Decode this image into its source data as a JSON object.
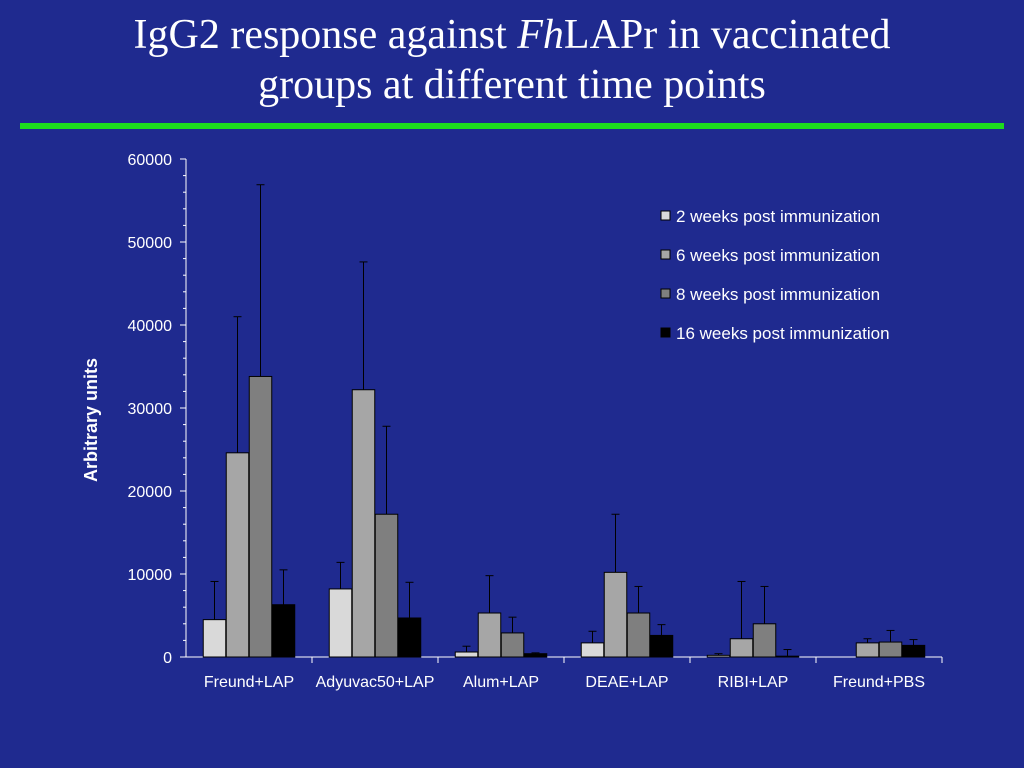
{
  "slide": {
    "title_part1": "IgG2 response against ",
    "title_italic": "Fh",
    "title_part2": "LAPr in vaccinated",
    "title_line2": "groups at different time points",
    "accent_color": "#1ddc1d",
    "background_color": "#1f2a8f"
  },
  "chart_data": {
    "type": "bar",
    "title": "",
    "xlabel": "",
    "ylabel": "Arbitrary units",
    "ylim": [
      0,
      60000
    ],
    "yticks": [
      0,
      10000,
      20000,
      30000,
      40000,
      50000,
      60000
    ],
    "categories": [
      "Freund+LAP",
      "Adyuvac50+LAP",
      "Alum+LAP",
      "DEAE+LAP",
      "RIBI+LAP",
      "Freund+PBS"
    ],
    "legend_position": "top-right",
    "grid": false,
    "error_bars": true,
    "series": [
      {
        "name": "2 weeks post immunization",
        "color": "#d9d9d9",
        "values": [
          4500,
          8200,
          600,
          1700,
          200,
          0
        ],
        "errors": [
          4600,
          3200,
          700,
          1400,
          200,
          0
        ]
      },
      {
        "name": "6 weeks post immunization",
        "color": "#a6a6a6",
        "values": [
          24600,
          32200,
          5300,
          10200,
          2200,
          1700
        ],
        "errors": [
          16400,
          15400,
          4500,
          7000,
          6900,
          500
        ]
      },
      {
        "name": "8 weeks post immunization",
        "color": "#7f7f7f",
        "values": [
          33800,
          17200,
          2900,
          5300,
          4000,
          1800
        ],
        "errors": [
          23100,
          10600,
          1900,
          3200,
          4500,
          1400
        ]
      },
      {
        "name": "16 weeks post immunization",
        "color": "#000000",
        "values": [
          6300,
          4700,
          400,
          2600,
          100,
          1400
        ],
        "errors": [
          4200,
          4300,
          100,
          1300,
          800,
          700
        ]
      }
    ]
  }
}
